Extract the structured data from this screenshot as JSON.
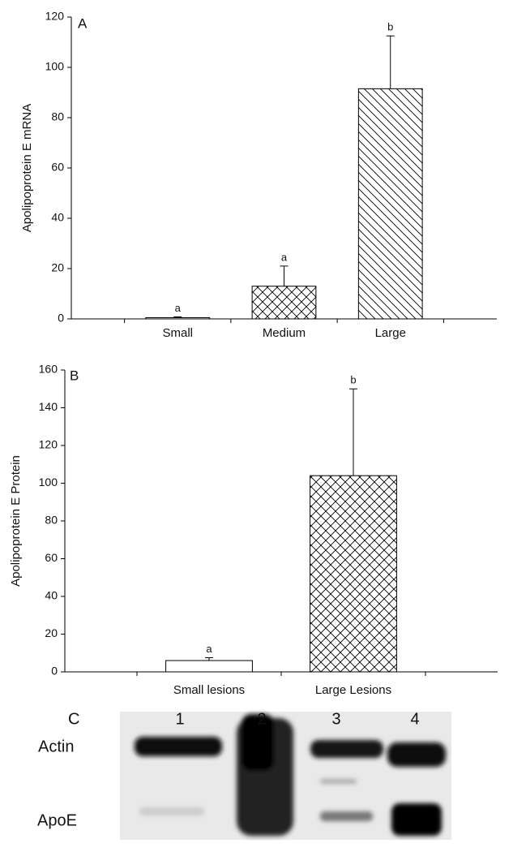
{
  "chart_data": [
    {
      "type": "bar",
      "panel": "A",
      "y_label": "Apolipoprotein E mRNA",
      "categories": [
        "Small",
        "Medium",
        "Large"
      ],
      "values": [
        0.5,
        13,
        91.5
      ],
      "errors": [
        0.3,
        8,
        21
      ],
      "annotations": [
        "a",
        "a",
        "b"
      ],
      "patterns": [
        "none",
        "cross",
        "diagonal"
      ],
      "color": "#000000",
      "ylim": [
        0,
        120
      ],
      "yticks": [
        0,
        20,
        40,
        60,
        80,
        100,
        120
      ]
    },
    {
      "type": "bar",
      "panel": "B",
      "y_label": "Apolipoprotein E Protein",
      "categories": [
        "Small lesions",
        "Large Lesions"
      ],
      "values": [
        6,
        104
      ],
      "errors": [
        1.5,
        46
      ],
      "annotations": [
        "a",
        "b"
      ],
      "patterns": [
        "none",
        "cross"
      ],
      "color": "#000000",
      "ylim": [
        0,
        160
      ],
      "yticks": [
        0,
        20,
        40,
        60,
        80,
        100,
        120,
        140,
        160
      ]
    }
  ],
  "blot": {
    "panel": "C",
    "lanes": [
      "1",
      "2",
      "3",
      "4"
    ],
    "bands": [
      "Actin",
      "ApoE"
    ]
  }
}
